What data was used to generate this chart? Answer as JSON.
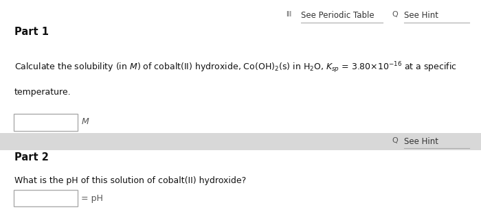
{
  "bg_color": "#e8e8e8",
  "panel_color": "#ffffff",
  "part1_label": "Part 1",
  "part2_label": "Part 2",
  "see_periodic_table": "See Periodic Table",
  "see_hint_1": "See Hint",
  "see_hint_2": "See Hint",
  "body_line1": "Calculate the solubility (in $M$) of cobalt(II) hydroxide, Co(OH)$_2$(s) in H$_2$O, $K_{sp}$ = 3.80×10$^{-16}$ at a specific",
  "body_line2": "temperature.",
  "m_label": "$M$",
  "part2_question": "What is the pH of this solution of cobalt(II) hydroxide?",
  "ph_label": "= pH",
  "font_size_part": 10.5,
  "font_size_body": 9.0,
  "font_size_hint": 8.5
}
